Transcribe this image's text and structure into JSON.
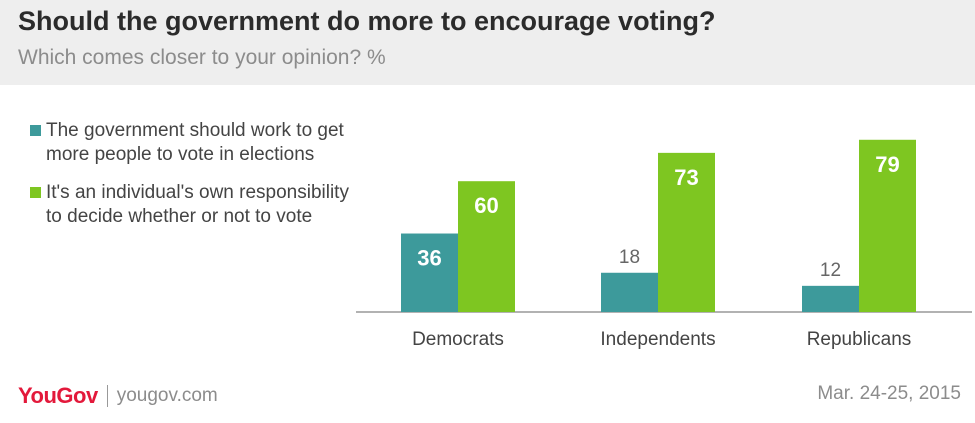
{
  "header": {
    "title": "Should the government do more to encourage voting?",
    "subtitle": "Which comes closer to your opinion? %"
  },
  "footer": {
    "brand": "YouGov",
    "site": "yougov.com",
    "date": "Mar. 24-25, 2015"
  },
  "colors": {
    "series1": "#3d9a9b",
    "series2": "#7ec621",
    "axis": "#999999",
    "brand": "#e3193b"
  },
  "chart_data": {
    "type": "bar",
    "title": "Should the government do more to encourage voting?",
    "subtitle": "Which comes closer to your opinion? %",
    "categories": [
      "Democrats",
      "Independents",
      "Republicans"
    ],
    "series": [
      {
        "name": "The government should work to get more people to vote in elections",
        "values": [
          36,
          18,
          12
        ]
      },
      {
        "name": "It's an individual's own responsibility to decide whether or not to vote",
        "values": [
          60,
          73,
          79
        ]
      }
    ],
    "legend": "left",
    "grid": false,
    "ylim": [
      0,
      100
    ],
    "xlabel": "",
    "ylabel": ""
  }
}
